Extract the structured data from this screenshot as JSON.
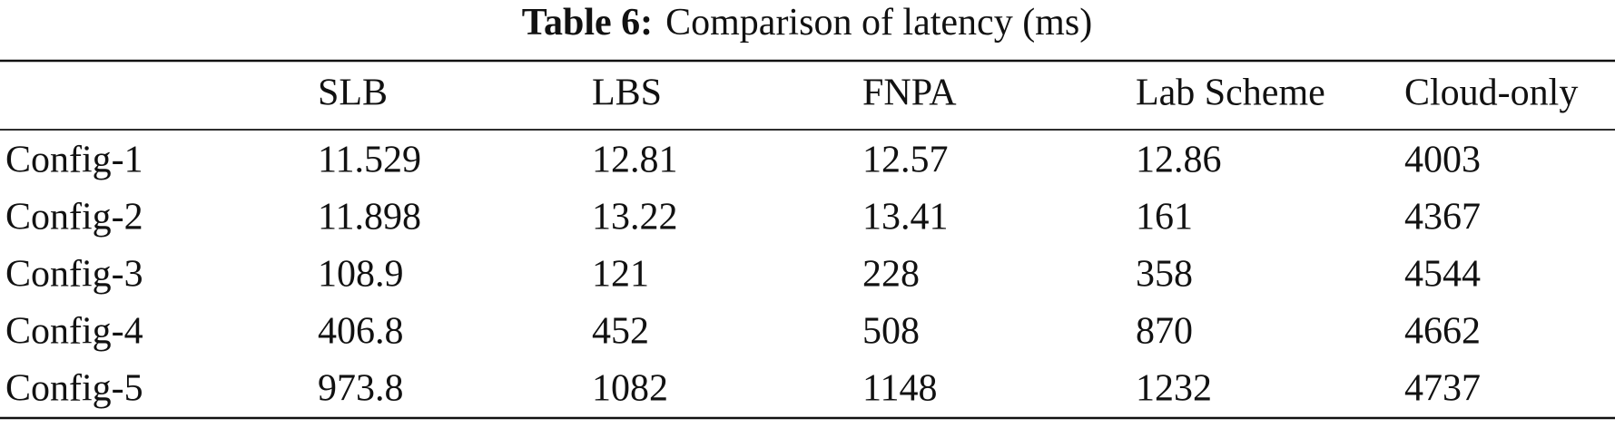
{
  "caption": {
    "label": "Table 6:",
    "text": "Comparison of latency (ms)"
  },
  "table": {
    "header": [
      "SLB",
      "LBS",
      "FNPA",
      "Lab Scheme",
      "Cloud-only"
    ],
    "rows": [
      [
        "Config-1",
        "11.529",
        "12.81",
        "12.57",
        "12.86",
        "4003"
      ],
      [
        "Config-2",
        "11.898",
        "13.22",
        "13.41",
        "161",
        "4367"
      ],
      [
        "Config-3",
        "108.9",
        "121",
        "228",
        "358",
        "4544"
      ],
      [
        "Config-4",
        "406.8",
        "452",
        "508",
        "870",
        "4662"
      ],
      [
        "Config-5",
        "973.8",
        "1082",
        "1148",
        "1232",
        "4737"
      ]
    ]
  }
}
